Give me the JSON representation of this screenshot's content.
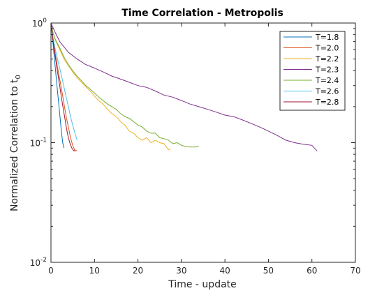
{
  "chart_data": {
    "type": "line",
    "title": "Time Correlation - Metropolis",
    "xlabel": "Time - update",
    "ylabel_main": "Normalized Correlation to t",
    "ylabel_sub": "0",
    "xlim": [
      0,
      70
    ],
    "ylim": [
      0.01,
      1
    ],
    "yscale": "log",
    "grid": false,
    "legend_position": "top-right",
    "xticks": [
      "0",
      "10",
      "20",
      "30",
      "40",
      "50",
      "60",
      "70"
    ],
    "xtick_values": [
      0,
      10,
      20,
      30,
      40,
      50,
      60,
      70
    ],
    "yticks": [
      {
        "base": "10",
        "exp": "-2",
        "value": 0.01
      },
      {
        "base": "10",
        "exp": "-1",
        "value": 0.1
      },
      {
        "base": "10",
        "exp": "0",
        "value": 1
      }
    ],
    "series": [
      {
        "name": "T=1.8",
        "color": "#0072BD",
        "x": [
          0,
          0.3,
          0.6,
          0.9,
          1.2,
          1.5,
          1.8,
          2.1,
          2.4,
          2.7,
          3.0
        ],
        "y": [
          1.0,
          0.78,
          0.6,
          0.46,
          0.35,
          0.27,
          0.21,
          0.16,
          0.125,
          0.1,
          0.09
        ]
      },
      {
        "name": "T=2.0",
        "color": "#D95319",
        "x": [
          0,
          0.5,
          1.0,
          1.5,
          2.0,
          2.5,
          3.0,
          3.5,
          4.0,
          4.5,
          5.0,
          5.5,
          6.0
        ],
        "y": [
          1.0,
          0.72,
          0.55,
          0.43,
          0.34,
          0.27,
          0.21,
          0.165,
          0.135,
          0.11,
          0.095,
          0.086,
          0.086
        ]
      },
      {
        "name": "T=2.2",
        "color": "#EDB120",
        "x": [
          0,
          0.5,
          1,
          2,
          3,
          4,
          5,
          6,
          7,
          8,
          9,
          10,
          11,
          12,
          13,
          14,
          15,
          16,
          17,
          18,
          19,
          20,
          21,
          22,
          23,
          24,
          25,
          26,
          27,
          27.5
        ],
        "y": [
          1.0,
          0.82,
          0.72,
          0.6,
          0.5,
          0.44,
          0.39,
          0.35,
          0.32,
          0.295,
          0.27,
          0.245,
          0.225,
          0.21,
          0.19,
          0.175,
          0.165,
          0.15,
          0.14,
          0.125,
          0.12,
          0.11,
          0.105,
          0.11,
          0.1,
          0.105,
          0.1,
          0.098,
          0.087,
          0.089
        ]
      },
      {
        "name": "T=2.3",
        "color": "#7E2F8E",
        "x": [
          0,
          1,
          2,
          4,
          6,
          8,
          10,
          12,
          14,
          16,
          18,
          20,
          22,
          24,
          26,
          28,
          30,
          32,
          34,
          36,
          38,
          40,
          42,
          44,
          46,
          48,
          50,
          52,
          54,
          56,
          58,
          60,
          61.2
        ],
        "y": [
          1.0,
          0.83,
          0.7,
          0.57,
          0.5,
          0.45,
          0.42,
          0.39,
          0.36,
          0.34,
          0.32,
          0.3,
          0.29,
          0.27,
          0.25,
          0.24,
          0.225,
          0.21,
          0.2,
          0.19,
          0.18,
          0.17,
          0.165,
          0.155,
          0.145,
          0.135,
          0.125,
          0.115,
          0.105,
          0.1,
          0.097,
          0.095,
          0.085
        ]
      },
      {
        "name": "T=2.4",
        "color": "#77AC30",
        "x": [
          0,
          0.5,
          1,
          2,
          3,
          4,
          5,
          6,
          7,
          8,
          9,
          10,
          11,
          12,
          13,
          14,
          15,
          16,
          17,
          18,
          19,
          20,
          21,
          22,
          23,
          24,
          25,
          26,
          27,
          28,
          29,
          30,
          31,
          32,
          33,
          34
        ],
        "y": [
          1.0,
          0.82,
          0.73,
          0.62,
          0.52,
          0.45,
          0.4,
          0.36,
          0.33,
          0.3,
          0.28,
          0.26,
          0.24,
          0.225,
          0.21,
          0.2,
          0.19,
          0.175,
          0.165,
          0.16,
          0.15,
          0.14,
          0.135,
          0.125,
          0.12,
          0.12,
          0.11,
          0.108,
          0.105,
          0.098,
          0.1,
          0.095,
          0.093,
          0.092,
          0.092,
          0.093
        ]
      },
      {
        "name": "T=2.6",
        "color": "#4DBEEE",
        "x": [
          0,
          0.5,
          1.0,
          1.5,
          2.0,
          2.5,
          3.0,
          3.5,
          4.0,
          4.5,
          5.0,
          5.5,
          6.0
        ],
        "y": [
          1.0,
          0.75,
          0.6,
          0.5,
          0.42,
          0.35,
          0.29,
          0.24,
          0.2,
          0.165,
          0.14,
          0.12,
          0.105
        ]
      },
      {
        "name": "T=2.8",
        "color": "#A2142F",
        "x": [
          0,
          0.4,
          0.8,
          1.2,
          1.6,
          2.0,
          2.4,
          2.8,
          3.2,
          3.6,
          4.0,
          4.4,
          4.8,
          5.2,
          5.6
        ],
        "y": [
          1.0,
          0.75,
          0.58,
          0.46,
          0.37,
          0.3,
          0.24,
          0.195,
          0.16,
          0.13,
          0.11,
          0.098,
          0.09,
          0.086,
          0.085
        ]
      }
    ]
  }
}
